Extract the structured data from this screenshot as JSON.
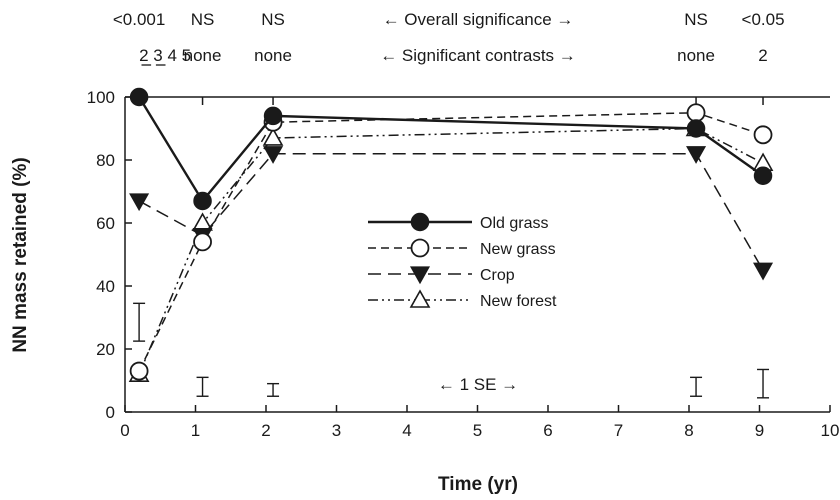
{
  "chart_data": {
    "type": "line",
    "title": "",
    "xlabel": "Time (yr)",
    "ylabel": "NN mass retained (%)",
    "xlim": [
      0,
      10
    ],
    "ylim": [
      0,
      100
    ],
    "x_ticks": [
      "0",
      "1",
      "2",
      "3",
      "4",
      "5",
      "6",
      "7",
      "8",
      "9",
      "10"
    ],
    "y_ticks": [
      "0",
      "20",
      "40",
      "60",
      "80",
      "100"
    ],
    "grid": false,
    "legend_position": "center",
    "series": [
      {
        "name": "Old grass",
        "marker": "filled-circle",
        "dash": "solid",
        "color": "#1a1a1a",
        "x": [
          0.2,
          1.1,
          2.1,
          8.1,
          9.05
        ],
        "y": [
          100,
          67,
          94,
          90,
          75
        ]
      },
      {
        "name": "New grass",
        "marker": "open-circle",
        "dash": "dashed",
        "color": "#1a1a1a",
        "x": [
          0.2,
          1.1,
          2.1,
          8.1,
          9.05
        ],
        "y": [
          13,
          54,
          92,
          95,
          88
        ]
      },
      {
        "name": "Crop",
        "marker": "filled-triangle-down",
        "dash": "long-dash",
        "color": "#1a1a1a",
        "x": [
          0.2,
          1.1,
          2.1,
          8.1,
          9.05
        ],
        "y": [
          67,
          56,
          82,
          82,
          45
        ]
      },
      {
        "name": "New forest",
        "marker": "open-triangle-up",
        "dash": "dash-dot-dot",
        "color": "#1a1a1a",
        "x": [
          0.2,
          1.1,
          2.1,
          8.1,
          9.05
        ],
        "y": [
          12,
          60,
          87,
          90,
          79
        ]
      }
    ],
    "error_bars": [
      {
        "x": 0.2,
        "y": 28.5,
        "half": 6
      },
      {
        "x": 1.1,
        "y": 8,
        "half": 3
      },
      {
        "x": 2.1,
        "y": 7,
        "half": 2
      },
      {
        "x": 8.1,
        "y": 8,
        "half": 3
      },
      {
        "x": 9.05,
        "y": 9,
        "half": 4.5
      }
    ],
    "se_label": "← 1 SE →",
    "top_annotations": {
      "overall": {
        "label": "← Overall significance →",
        "values": [
          {
            "x": 0.2,
            "text": "<0.001"
          },
          {
            "x": 1.1,
            "text": "NS"
          },
          {
            "x": 2.1,
            "text": "NS"
          },
          {
            "x": 8.1,
            "text": "NS"
          },
          {
            "x": 9.05,
            "text": "<0.05"
          }
        ]
      },
      "contrasts": {
        "label": "← Significant contrasts →",
        "values": [
          {
            "x": 0.2,
            "text": "2 3 4 5"
          },
          {
            "x": 1.1,
            "text": "none"
          },
          {
            "x": 2.1,
            "text": "none"
          },
          {
            "x": 8.1,
            "text": "none"
          },
          {
            "x": 9.05,
            "text": "2"
          }
        ]
      }
    }
  }
}
